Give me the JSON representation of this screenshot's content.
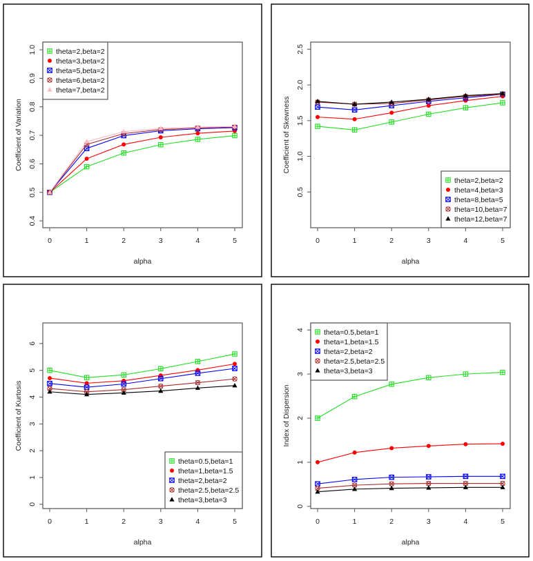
{
  "chart_data": [
    {
      "type": "line",
      "title": "",
      "xlabel": "alpha",
      "ylabel": "Coefficient of Variation",
      "x": [
        0,
        1,
        2,
        3,
        4,
        5
      ],
      "xlim": [
        0,
        5
      ],
      "ylim": [
        0.376,
        1.027
      ],
      "xticks": [
        "0",
        "1",
        "2",
        "3",
        "4",
        "5"
      ],
      "yticks": [
        "0.4",
        "0.5",
        "0.6",
        "0.7",
        "0.8",
        "0.9",
        "1.0"
      ],
      "ytick_values": [
        0.4,
        0.5,
        0.6,
        0.7,
        0.8,
        0.9,
        1.0
      ],
      "grid": false,
      "legend_position": "top-left",
      "series": [
        {
          "name": "theta=2,beta=2",
          "color": "#22dd22",
          "marker": "square-plus",
          "values": [
            0.5,
            0.59,
            0.638,
            0.667,
            0.686,
            0.699
          ]
        },
        {
          "name": "theta=3,beta=2",
          "color": "#ff0000",
          "marker": "circle",
          "values": [
            0.5,
            0.618,
            0.668,
            0.693,
            0.707,
            0.715
          ]
        },
        {
          "name": "theta=5,beta=2",
          "color": "#0000ff",
          "marker": "square-x",
          "values": [
            0.5,
            0.654,
            0.699,
            0.716,
            0.723,
            0.727
          ]
        },
        {
          "name": "theta=6,beta=2",
          "color": "#a52a2a",
          "marker": "circle-x",
          "values": [
            0.5,
            0.668,
            0.706,
            0.72,
            0.726,
            0.729
          ]
        },
        {
          "name": "theta=7,beta=2",
          "color": "#ffb6c1",
          "marker": "triangle",
          "values": [
            0.5,
            0.678,
            0.713,
            0.724,
            0.729,
            0.731
          ]
        }
      ]
    },
    {
      "type": "line",
      "title": "",
      "xlabel": "alpha",
      "ylabel": "Coefficient of Skewness",
      "x": [
        0,
        1,
        2,
        3,
        4,
        5
      ],
      "xlim": [
        0,
        5
      ],
      "ylim": [
        0.0,
        2.6
      ],
      "xticks": [
        "0",
        "1",
        "2",
        "3",
        "4",
        "5"
      ],
      "yticks": [
        "0.5",
        "1.0",
        "1.5",
        "2.0",
        "2.5"
      ],
      "ytick_values": [
        0.5,
        1.0,
        1.5,
        2.0,
        2.5
      ],
      "grid": false,
      "legend_position": "bottom-right",
      "series": [
        {
          "name": "theta=2,beta=2",
          "color": "#22dd22",
          "marker": "square-plus",
          "values": [
            1.42,
            1.37,
            1.48,
            1.59,
            1.68,
            1.75
          ]
        },
        {
          "name": "theta=4,beta=3",
          "color": "#ff0000",
          "marker": "circle",
          "values": [
            1.55,
            1.52,
            1.61,
            1.71,
            1.78,
            1.84
          ]
        },
        {
          "name": "theta=8,beta=5",
          "color": "#0000ff",
          "marker": "square-x",
          "values": [
            1.69,
            1.65,
            1.71,
            1.77,
            1.82,
            1.87
          ]
        },
        {
          "name": "theta=10,beta=7",
          "color": "#a52a2a",
          "marker": "circle-x",
          "values": [
            1.76,
            1.73,
            1.74,
            1.79,
            1.84,
            1.87
          ]
        },
        {
          "name": "theta=12,beta=7",
          "color": "#000000",
          "marker": "triangle",
          "values": [
            1.77,
            1.73,
            1.76,
            1.8,
            1.85,
            1.88
          ]
        }
      ]
    },
    {
      "type": "line",
      "title": "",
      "xlabel": "alpha",
      "ylabel": "Coefficient of Kurtosis",
      "x": [
        0,
        1,
        2,
        3,
        4,
        5
      ],
      "xlim": [
        0,
        5
      ],
      "ylim": [
        -0.16,
        6.77
      ],
      "xticks": [
        "0",
        "1",
        "2",
        "3",
        "4",
        "5"
      ],
      "yticks": [
        "0",
        "1",
        "2",
        "3",
        "4",
        "5",
        "6"
      ],
      "ytick_values": [
        0,
        1,
        2,
        3,
        4,
        5,
        6
      ],
      "grid": false,
      "legend_position": "bottom-right",
      "series": [
        {
          "name": "theta=0.5,beta=1",
          "color": "#22dd22",
          "marker": "square-plus",
          "values": [
            5.0,
            4.73,
            4.83,
            5.06,
            5.33,
            5.61
          ]
        },
        {
          "name": "theta=1,beta=1.5",
          "color": "#ff0000",
          "marker": "circle",
          "values": [
            4.71,
            4.52,
            4.61,
            4.81,
            5.01,
            5.24
          ]
        },
        {
          "name": "theta=2,beta=2",
          "color": "#0000ff",
          "marker": "square-x",
          "values": [
            4.51,
            4.37,
            4.49,
            4.69,
            4.89,
            5.07
          ]
        },
        {
          "name": "theta=2.5,beta=2.5",
          "color": "#a52a2a",
          "marker": "circle-x",
          "values": [
            4.32,
            4.2,
            4.28,
            4.41,
            4.54,
            4.68
          ]
        },
        {
          "name": "theta=3,beta=3",
          "color": "#000000",
          "marker": "triangle",
          "values": [
            4.2,
            4.1,
            4.16,
            4.23,
            4.34,
            4.43
          ]
        }
      ]
    },
    {
      "type": "line",
      "title": "",
      "xlabel": "alpha",
      "ylabel": "Index of Dispersion",
      "x": [
        0,
        1,
        2,
        3,
        4,
        5
      ],
      "xlim": [
        0,
        5
      ],
      "ylim": [
        -0.05,
        4.16
      ],
      "xticks": [
        "0",
        "1",
        "2",
        "3",
        "4",
        "5"
      ],
      "yticks": [
        "0",
        "1",
        "2",
        "3",
        "4"
      ],
      "ytick_values": [
        0,
        1,
        2,
        3,
        4
      ],
      "grid": false,
      "legend_position": "top-left",
      "series": [
        {
          "name": "theta=0.5,beta=1",
          "color": "#22dd22",
          "marker": "square-plus",
          "values": [
            2.0,
            2.49,
            2.77,
            2.92,
            3.0,
            3.04
          ]
        },
        {
          "name": "theta=1,beta=1.5",
          "color": "#ff0000",
          "marker": "circle",
          "values": [
            1.0,
            1.22,
            1.32,
            1.37,
            1.41,
            1.42
          ]
        },
        {
          "name": "theta=2,beta=2",
          "color": "#0000ff",
          "marker": "square-x",
          "values": [
            0.51,
            0.61,
            0.66,
            0.67,
            0.68,
            0.68
          ]
        },
        {
          "name": "theta=2.5,beta=2.5",
          "color": "#a52a2a",
          "marker": "circle-x",
          "values": [
            0.41,
            0.48,
            0.51,
            0.52,
            0.52,
            0.52
          ]
        },
        {
          "name": "theta=3,beta=3",
          "color": "#000000",
          "marker": "triangle",
          "values": [
            0.33,
            0.39,
            0.41,
            0.42,
            0.43,
            0.43
          ]
        }
      ]
    }
  ]
}
